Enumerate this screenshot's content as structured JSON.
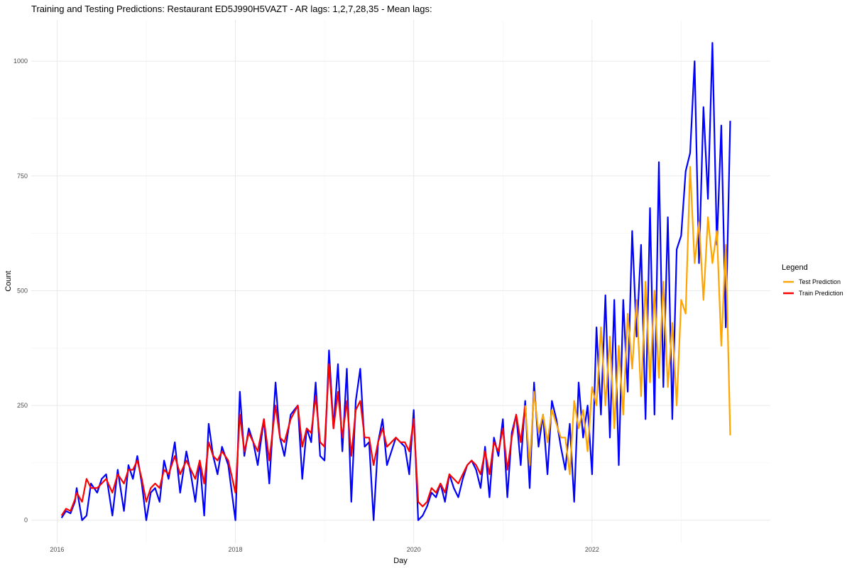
{
  "chart_data": {
    "type": "line",
    "title": "Training and Testing Predictions: Restaurant ED5J990H5VAZT - AR lags: 1,2,7,28,35 - Mean lags:",
    "xlabel": "Day",
    "ylabel": "Count",
    "x_ticks": [
      "2016",
      "2018",
      "2020",
      "2022"
    ],
    "x_tick_values": [
      2016.0,
      2018.0,
      2020.0,
      2022.0
    ],
    "y_ticks": [
      "0",
      "250",
      "500",
      "750",
      "1000"
    ],
    "y_tick_values": [
      0,
      250,
      500,
      750,
      1000
    ],
    "xlim": [
      2015.71,
      2024.0
    ],
    "ylim": [
      -50,
      1090
    ],
    "grid": true,
    "legend": {
      "title": "Legend",
      "position": "right",
      "entries": [
        {
          "label": "Test Prediction",
          "color": "#FFA500"
        },
        {
          "label": "Train Prediction",
          "color": "#FF0000"
        }
      ]
    },
    "series": [
      {
        "color": "#0000FF",
        "x": [
          2016.05,
          2016.1,
          2016.15,
          2016.2,
          2016.22,
          2016.28,
          2016.33,
          2016.38,
          2016.45,
          2016.5,
          2016.55,
          2016.62,
          2016.68,
          2016.75,
          2016.8,
          2016.85,
          2016.9,
          2016.95,
          2017.0,
          2017.05,
          2017.1,
          2017.15,
          2017.2,
          2017.25,
          2017.32,
          2017.38,
          2017.45,
          2017.5,
          2017.55,
          2017.6,
          2017.65,
          2017.7,
          2017.75,
          2017.8,
          2017.85,
          2017.92,
          2018.0,
          2018.05,
          2018.1,
          2018.15,
          2018.2,
          2018.25,
          2018.32,
          2018.38,
          2018.45,
          2018.5,
          2018.55,
          2018.62,
          2018.7,
          2018.75,
          2018.8,
          2018.85,
          2018.9,
          2018.95,
          2019.0,
          2019.05,
          2019.1,
          2019.15,
          2019.2,
          2019.25,
          2019.3,
          2019.35,
          2019.4,
          2019.45,
          2019.5,
          2019.55,
          2019.6,
          2019.65,
          2019.7,
          2019.75,
          2019.8,
          2019.85,
          2019.9,
          2019.95,
          2020.0,
          2020.05,
          2020.1,
          2020.15,
          2020.2,
          2020.25,
          2020.3,
          2020.35,
          2020.4,
          2020.45,
          2020.5,
          2020.55,
          2020.6,
          2020.65,
          2020.7,
          2020.75,
          2020.8,
          2020.85,
          2020.9,
          2020.95,
          2021.0,
          2021.05,
          2021.1,
          2021.15,
          2021.2,
          2021.25,
          2021.3,
          2021.35,
          2021.4,
          2021.45,
          2021.5,
          2021.55,
          2021.6,
          2021.65,
          2021.7,
          2021.75,
          2021.8,
          2021.85,
          2021.9,
          2021.95,
          2022.0,
          2022.05,
          2022.1,
          2022.15,
          2022.2,
          2022.25,
          2022.3,
          2022.35,
          2022.4,
          2022.45,
          2022.5,
          2022.55,
          2022.6,
          2022.65,
          2022.7,
          2022.75,
          2022.8,
          2022.85,
          2022.9,
          2022.95,
          2023.0,
          2023.05,
          2023.1,
          2023.15,
          2023.2,
          2023.25,
          2023.3,
          2023.35,
          2023.4,
          2023.45,
          2023.5,
          2023.55
        ],
        "values": [
          5,
          20,
          15,
          40,
          70,
          0,
          10,
          80,
          60,
          90,
          100,
          10,
          110,
          20,
          120,
          90,
          140,
          80,
          0,
          60,
          70,
          40,
          130,
          90,
          170,
          60,
          150,
          100,
          40,
          130,
          10,
          210,
          140,
          100,
          160,
          120,
          0,
          280,
          140,
          200,
          170,
          120,
          220,
          80,
          300,
          180,
          140,
          230,
          250,
          90,
          200,
          170,
          300,
          140,
          130,
          370,
          200,
          340,
          150,
          330,
          40,
          260,
          330,
          160,
          170,
          0,
          170,
          220,
          120,
          150,
          180,
          170,
          160,
          100,
          240,
          0,
          10,
          30,
          60,
          50,
          80,
          40,
          100,
          70,
          50,
          90,
          120,
          130,
          110,
          70,
          160,
          50,
          180,
          140,
          220,
          50,
          190,
          230,
          120,
          260,
          70,
          300,
          160,
          230,
          100,
          260,
          220,
          160,
          110,
          210,
          40,
          300,
          180,
          250,
          100,
          420,
          230,
          490,
          180,
          480,
          120,
          480,
          280,
          630,
          400,
          600,
          220,
          680,
          230,
          780,
          290,
          660,
          220,
          590,
          620,
          760,
          800,
          1000,
          560,
          900,
          700,
          1040,
          600,
          860,
          420,
          870
        ]
      },
      {
        "color": "#FF0000",
        "x": [
          2016.05,
          2016.1,
          2016.15,
          2016.2,
          2016.22,
          2016.28,
          2016.33,
          2016.38,
          2016.45,
          2016.5,
          2016.55,
          2016.62,
          2016.68,
          2016.75,
          2016.8,
          2016.85,
          2016.9,
          2016.95,
          2017.0,
          2017.05,
          2017.1,
          2017.15,
          2017.2,
          2017.25,
          2017.32,
          2017.38,
          2017.45,
          2017.5,
          2017.55,
          2017.6,
          2017.65,
          2017.7,
          2017.75,
          2017.8,
          2017.85,
          2017.92,
          2018.0,
          2018.05,
          2018.1,
          2018.15,
          2018.2,
          2018.25,
          2018.32,
          2018.38,
          2018.45,
          2018.5,
          2018.55,
          2018.62,
          2018.7,
          2018.75,
          2018.8,
          2018.85,
          2018.9,
          2018.95,
          2019.0,
          2019.05,
          2019.1,
          2019.15,
          2019.2,
          2019.25,
          2019.3,
          2019.35,
          2019.4,
          2019.45,
          2019.5,
          2019.55,
          2019.6,
          2019.65,
          2019.7,
          2019.75,
          2019.8,
          2019.85,
          2019.9,
          2019.95,
          2020.0,
          2020.05,
          2020.1,
          2020.15,
          2020.2,
          2020.25,
          2020.3,
          2020.35,
          2020.4,
          2020.45,
          2020.5,
          2020.55,
          2020.6,
          2020.65,
          2020.7,
          2020.75,
          2020.8,
          2020.85,
          2020.9,
          2020.95,
          2021.0,
          2021.05,
          2021.1,
          2021.15,
          2021.2,
          2021.25
        ],
        "values": [
          10,
          25,
          20,
          45,
          60,
          40,
          90,
          70,
          70,
          80,
          90,
          60,
          100,
          80,
          110,
          110,
          130,
          90,
          40,
          70,
          80,
          70,
          110,
          100,
          140,
          100,
          130,
          110,
          90,
          130,
          80,
          170,
          140,
          130,
          150,
          130,
          60,
          230,
          150,
          190,
          170,
          150,
          220,
          130,
          250,
          180,
          170,
          220,
          250,
          160,
          200,
          190,
          270,
          170,
          160,
          340,
          200,
          280,
          180,
          260,
          140,
          240,
          260,
          180,
          180,
          120,
          170,
          200,
          160,
          170,
          180,
          170,
          170,
          150,
          220,
          40,
          30,
          40,
          70,
          60,
          80,
          60,
          100,
          90,
          80,
          100,
          120,
          130,
          120,
          100,
          150,
          100,
          170,
          150,
          200,
          110,
          180,
          230,
          170,
          250
        ]
      },
      {
        "color": "#FFA500",
        "x": [
          2021.25,
          2021.3,
          2021.35,
          2021.4,
          2021.45,
          2021.5,
          2021.55,
          2021.6,
          2021.65,
          2021.7,
          2021.75,
          2021.8,
          2021.85,
          2021.9,
          2021.95,
          2022.0,
          2022.05,
          2022.1,
          2022.15,
          2022.2,
          2022.25,
          2022.3,
          2022.35,
          2022.4,
          2022.45,
          2022.5,
          2022.55,
          2022.6,
          2022.65,
          2022.7,
          2022.75,
          2022.8,
          2022.85,
          2022.9,
          2022.95,
          2023.0,
          2023.05,
          2023.1,
          2023.15,
          2023.2,
          2023.25,
          2023.3,
          2023.35,
          2023.4,
          2023.45,
          2023.5,
          2023.55
        ],
        "values": [
          250,
          120,
          280,
          190,
          230,
          170,
          240,
          210,
          180,
          180,
          100,
          260,
          200,
          240,
          150,
          290,
          250,
          420,
          250,
          400,
          200,
          380,
          230,
          450,
          330,
          480,
          270,
          520,
          300,
          500,
          310,
          520,
          290,
          430,
          250,
          480,
          450,
          770,
          560,
          650,
          480,
          660,
          560,
          630,
          380,
          600,
          185
        ]
      }
    ]
  }
}
